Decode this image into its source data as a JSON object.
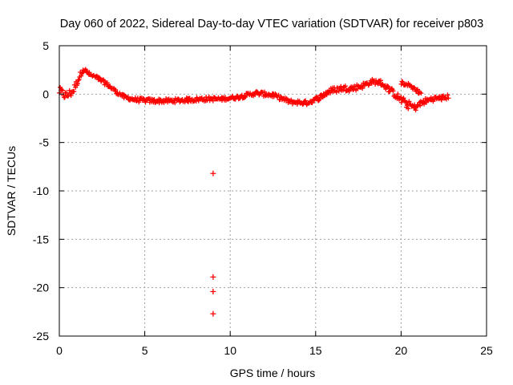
{
  "chart_data": {
    "type": "scatter",
    "title": "Day 060 of 2022, Sidereal Day-to-day VTEC variation (SDTVAR) for receiver p803",
    "xlabel": "GPS time / hours",
    "ylabel": "SDTVAR / TECUs",
    "xlim": [
      0,
      25
    ],
    "ylim": [
      -25,
      5
    ],
    "xticks": [
      0,
      5,
      10,
      15,
      20,
      25
    ],
    "yticks": [
      5,
      0,
      -5,
      -10,
      -15,
      -20,
      -25
    ],
    "grid": true,
    "marker": "plus",
    "color": "#ff0000",
    "series": [
      {
        "name": "SDTVAR",
        "trace": [
          {
            "x": 0.0,
            "y": 0.3,
            "spread": 0.9
          },
          {
            "x": 0.4,
            "y": -0.2,
            "spread": 1.0
          },
          {
            "x": 0.8,
            "y": 0.3,
            "spread": 0.8
          },
          {
            "x": 1.1,
            "y": 1.5,
            "spread": 0.7
          },
          {
            "x": 1.4,
            "y": 2.6,
            "spread": 0.5
          },
          {
            "x": 1.8,
            "y": 2.0,
            "spread": 0.4
          },
          {
            "x": 2.3,
            "y": 1.6,
            "spread": 0.4
          },
          {
            "x": 2.8,
            "y": 1.0,
            "spread": 0.4
          },
          {
            "x": 3.3,
            "y": 0.3,
            "spread": 0.4
          },
          {
            "x": 3.8,
            "y": -0.3,
            "spread": 0.4
          },
          {
            "x": 4.5,
            "y": -0.6,
            "spread": 0.45
          },
          {
            "x": 5.5,
            "y": -0.7,
            "spread": 0.45
          },
          {
            "x": 6.5,
            "y": -0.7,
            "spread": 0.45
          },
          {
            "x": 7.5,
            "y": -0.6,
            "spread": 0.45
          },
          {
            "x": 8.5,
            "y": -0.5,
            "spread": 0.45
          },
          {
            "x": 9.5,
            "y": -0.5,
            "spread": 0.35
          },
          {
            "x": 10.5,
            "y": -0.3,
            "spread": 0.4
          },
          {
            "x": 11.5,
            "y": 0.1,
            "spread": 0.45
          },
          {
            "x": 12.5,
            "y": -0.1,
            "spread": 0.45
          },
          {
            "x": 13.5,
            "y": -0.8,
            "spread": 0.45
          },
          {
            "x": 14.5,
            "y": -0.9,
            "spread": 0.45
          },
          {
            "x": 15.2,
            "y": -0.4,
            "spread": 0.5
          },
          {
            "x": 15.8,
            "y": 0.3,
            "spread": 0.6
          },
          {
            "x": 16.5,
            "y": 0.6,
            "spread": 0.6
          },
          {
            "x": 17.2,
            "y": 0.6,
            "spread": 0.6
          },
          {
            "x": 17.8,
            "y": 0.9,
            "spread": 0.6
          },
          {
            "x": 18.3,
            "y": 1.3,
            "spread": 0.5
          },
          {
            "x": 18.8,
            "y": 1.2,
            "spread": 0.5
          },
          {
            "x": 19.3,
            "y": 0.5,
            "spread": 0.6
          },
          {
            "x": 19.8,
            "y": -0.3,
            "spread": 0.7
          },
          {
            "x": 20.3,
            "y": -1.0,
            "spread": 0.9
          },
          {
            "x": 20.8,
            "y": -1.4,
            "spread": 0.7
          },
          {
            "x": 21.3,
            "y": -0.8,
            "spread": 0.6
          },
          {
            "x": 21.8,
            "y": -0.5,
            "spread": 0.5
          },
          {
            "x": 22.4,
            "y": -0.4,
            "spread": 0.5
          },
          {
            "x": 22.8,
            "y": -0.3,
            "spread": 0.5
          }
        ],
        "branch": [
          {
            "x": 20.0,
            "y": 1.2,
            "spread": 0.4
          },
          {
            "x": 20.6,
            "y": 0.8,
            "spread": 0.4
          },
          {
            "x": 21.2,
            "y": 0.0,
            "spread": 0.4
          }
        ],
        "outliers": [
          {
            "x": 9.0,
            "y": -8.2
          },
          {
            "x": 9.0,
            "y": -18.9
          },
          {
            "x": 9.0,
            "y": -20.4
          },
          {
            "x": 9.0,
            "y": -22.7
          }
        ]
      }
    ]
  }
}
